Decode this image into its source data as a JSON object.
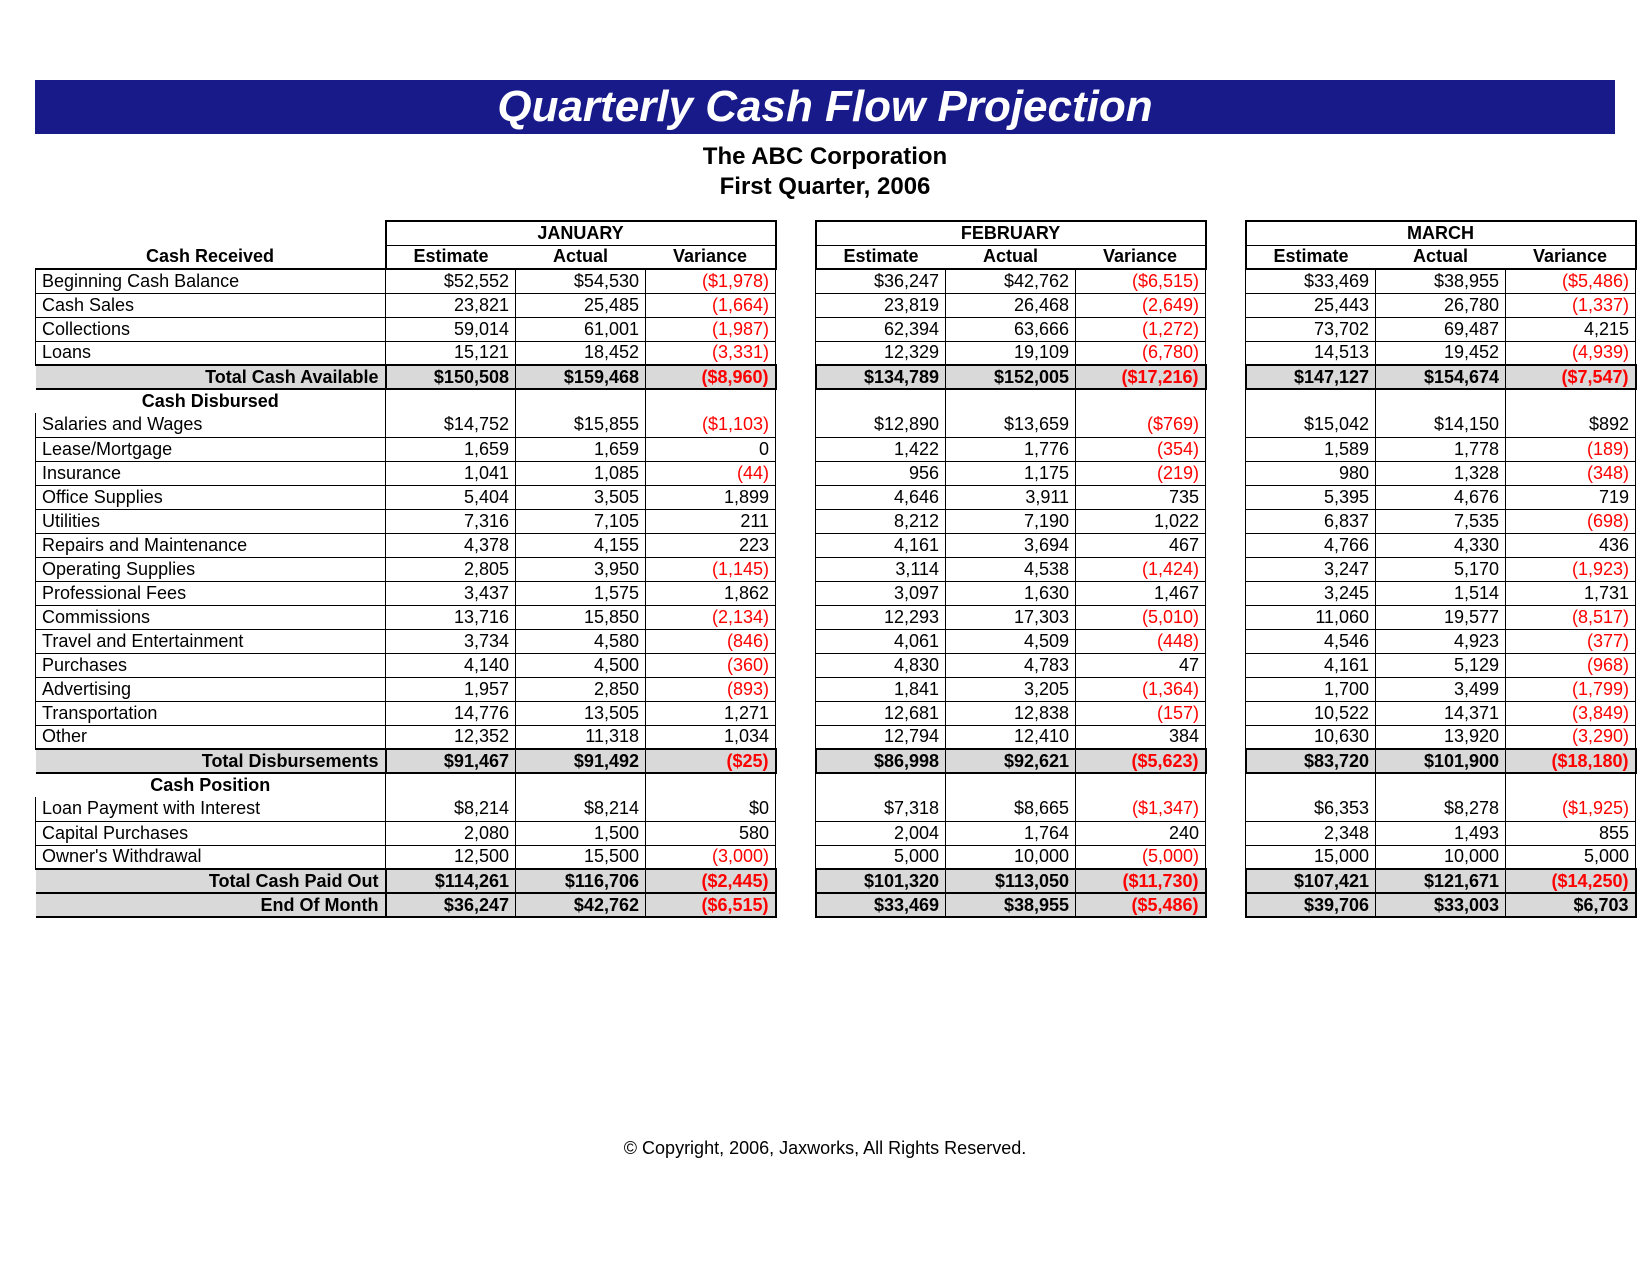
{
  "title": "Quarterly Cash Flow Projection",
  "company": "The ABC Corporation",
  "period": "First Quarter, 2006",
  "copyright": "© Copyright, 2006, Jaxworks, All Rights Reserved.",
  "months": [
    "JANUARY",
    "FEBRUARY",
    "MARCH"
  ],
  "sub_headers": [
    "Estimate",
    "Actual",
    "Variance"
  ],
  "colors": {
    "title_bg": "#181a8a",
    "title_fg": "#ffffff",
    "total_bg": "#d9d9d9",
    "negative": "#ff0000",
    "border": "#000000"
  },
  "sections": [
    {
      "heading": "Cash Received",
      "heading_in_subheader": true,
      "rows": [
        {
          "label": "Beginning Cash Balance",
          "fmt": "cur",
          "jan": [
            52552,
            54530,
            -1978
          ],
          "feb": [
            36247,
            42762,
            -6515
          ],
          "mar": [
            33469,
            38955,
            -5486
          ]
        },
        {
          "label": "Cash Sales",
          "fmt": "num",
          "jan": [
            23821,
            25485,
            -1664
          ],
          "feb": [
            23819,
            26468,
            -2649
          ],
          "mar": [
            25443,
            26780,
            -1337
          ]
        },
        {
          "label": "Collections",
          "fmt": "num",
          "jan": [
            59014,
            61001,
            -1987
          ],
          "feb": [
            62394,
            63666,
            -1272
          ],
          "mar": [
            73702,
            69487,
            4215
          ]
        },
        {
          "label": "Loans",
          "fmt": "num",
          "jan": [
            15121,
            18452,
            -3331
          ],
          "feb": [
            12329,
            19109,
            -6780
          ],
          "mar": [
            14513,
            19452,
            -4939
          ]
        }
      ],
      "total": {
        "label": "Total Cash Available",
        "fmt": "cur",
        "jan": [
          150508,
          159468,
          -8960
        ],
        "feb": [
          134789,
          152005,
          -17216
        ],
        "mar": [
          147127,
          154674,
          -7547
        ]
      }
    },
    {
      "heading": "Cash Disbursed",
      "rows": [
        {
          "label": "Salaries and Wages",
          "fmt": "cur",
          "jan": [
            14752,
            15855,
            -1103
          ],
          "feb": [
            12890,
            13659,
            -769
          ],
          "mar": [
            15042,
            14150,
            892
          ]
        },
        {
          "label": "Lease/Mortgage",
          "fmt": "num",
          "jan": [
            1659,
            1659,
            0
          ],
          "feb": [
            1422,
            1776,
            -354
          ],
          "mar": [
            1589,
            1778,
            -189
          ]
        },
        {
          "label": "Insurance",
          "fmt": "num",
          "jan": [
            1041,
            1085,
            -44
          ],
          "feb": [
            956,
            1175,
            -219
          ],
          "mar": [
            980,
            1328,
            -348
          ]
        },
        {
          "label": "Office Supplies",
          "fmt": "num",
          "jan": [
            5404,
            3505,
            1899
          ],
          "feb": [
            4646,
            3911,
            735
          ],
          "mar": [
            5395,
            4676,
            719
          ]
        },
        {
          "label": "Utilities",
          "fmt": "num",
          "jan": [
            7316,
            7105,
            211
          ],
          "feb": [
            8212,
            7190,
            1022
          ],
          "mar": [
            6837,
            7535,
            -698
          ]
        },
        {
          "label": "Repairs and Maintenance",
          "fmt": "num",
          "jan": [
            4378,
            4155,
            223
          ],
          "feb": [
            4161,
            3694,
            467
          ],
          "mar": [
            4766,
            4330,
            436
          ]
        },
        {
          "label": "Operating Supplies",
          "fmt": "num",
          "jan": [
            2805,
            3950,
            -1145
          ],
          "feb": [
            3114,
            4538,
            -1424
          ],
          "mar": [
            3247,
            5170,
            -1923
          ]
        },
        {
          "label": "Professional Fees",
          "fmt": "num",
          "jan": [
            3437,
            1575,
            1862
          ],
          "feb": [
            3097,
            1630,
            1467
          ],
          "mar": [
            3245,
            1514,
            1731
          ]
        },
        {
          "label": "Commissions",
          "fmt": "num",
          "jan": [
            13716,
            15850,
            -2134
          ],
          "feb": [
            12293,
            17303,
            -5010
          ],
          "mar": [
            11060,
            19577,
            -8517
          ]
        },
        {
          "label": "Travel and Entertainment",
          "fmt": "num",
          "jan": [
            3734,
            4580,
            -846
          ],
          "feb": [
            4061,
            4509,
            -448
          ],
          "mar": [
            4546,
            4923,
            -377
          ]
        },
        {
          "label": "Purchases",
          "fmt": "num",
          "jan": [
            4140,
            4500,
            -360
          ],
          "feb": [
            4830,
            4783,
            47
          ],
          "mar": [
            4161,
            5129,
            -968
          ]
        },
        {
          "label": "Advertising",
          "fmt": "num",
          "jan": [
            1957,
            2850,
            -893
          ],
          "feb": [
            1841,
            3205,
            -1364
          ],
          "mar": [
            1700,
            3499,
            -1799
          ]
        },
        {
          "label": "Transportation",
          "fmt": "num",
          "jan": [
            14776,
            13505,
            1271
          ],
          "feb": [
            12681,
            12838,
            -157
          ],
          "mar": [
            10522,
            14371,
            -3849
          ]
        },
        {
          "label": "Other",
          "fmt": "num",
          "jan": [
            12352,
            11318,
            1034
          ],
          "feb": [
            12794,
            12410,
            384
          ],
          "mar": [
            10630,
            13920,
            -3290
          ]
        }
      ],
      "total": {
        "label": "Total Disbursements",
        "fmt": "cur",
        "jan": [
          91467,
          91492,
          -25
        ],
        "feb": [
          86998,
          92621,
          -5623
        ],
        "mar": [
          83720,
          101900,
          -18180
        ]
      }
    },
    {
      "heading": "Cash Position",
      "rows": [
        {
          "label": "Loan Payment with Interest",
          "fmt": "cur",
          "jan": [
            8214,
            8214,
            0
          ],
          "feb": [
            7318,
            8665,
            -1347
          ],
          "mar": [
            6353,
            8278,
            -1925
          ]
        },
        {
          "label": "Capital Purchases",
          "fmt": "num",
          "jan": [
            2080,
            1500,
            580
          ],
          "feb": [
            2004,
            1764,
            240
          ],
          "mar": [
            2348,
            1493,
            855
          ]
        },
        {
          "label": "Owner's Withdrawal",
          "fmt": "num",
          "jan": [
            12500,
            15500,
            -3000
          ],
          "feb": [
            5000,
            10000,
            -5000
          ],
          "mar": [
            15000,
            10000,
            5000
          ]
        }
      ],
      "total": {
        "label": "Total Cash Paid Out",
        "fmt": "cur",
        "jan": [
          114261,
          116706,
          -2445
        ],
        "feb": [
          101320,
          113050,
          -11730
        ],
        "mar": [
          107421,
          121671,
          -14250
        ]
      },
      "end_of_month": {
        "label": "End Of Month",
        "fmt": "cur",
        "jan": [
          36247,
          42762,
          -6515
        ],
        "feb": [
          33469,
          38955,
          -5486
        ],
        "mar": [
          39706,
          33003,
          6703
        ]
      }
    }
  ]
}
